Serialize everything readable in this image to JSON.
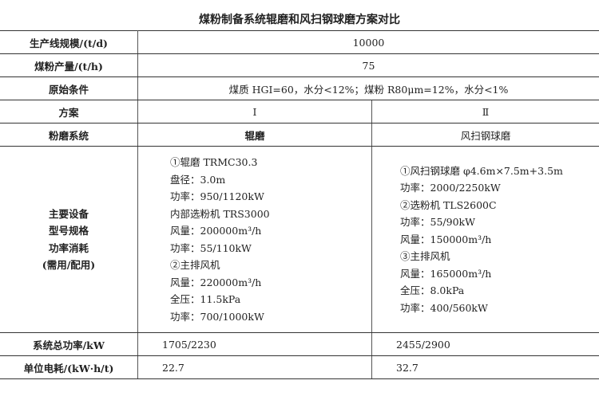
{
  "title": "煤粉制备系统辊磨和风扫钢球磨方案对比",
  "rows": {
    "scale": {
      "label": "生产线规模/(t/d)",
      "value": "10000"
    },
    "output": {
      "label": "煤粉产量/(t/h)",
      "value": "75"
    },
    "conditions": {
      "label": "原始条件",
      "value": "煤质 HGI=60，水分<12%；煤粉 R80μm=12%，水分<1%"
    },
    "scheme": {
      "label": "方案",
      "a": "Ⅰ",
      "b": "Ⅱ"
    },
    "system": {
      "label": "粉磨系统",
      "a": "辊磨",
      "b": "风扫钢球磨"
    },
    "equipment": {
      "label": [
        "主要设备",
        "型号规格",
        "功率消耗",
        "(需用/配用)"
      ],
      "a": [
        "①辊磨 TRMC30.3",
        "盘径：3.0m",
        "功率：950/1120kW",
        "内部选粉机 TRS3000",
        "风量：200000m³/h",
        "功率：55/110kW",
        "②主排风机",
        "风量：220000m³/h",
        "全压：11.5kPa",
        "功率：700/1000kW"
      ],
      "b": [
        "①风扫钢球磨 φ4.6m×7.5m+3.5m",
        "功率：2000/2250kW",
        "②选粉机 TLS2600C",
        "功率：55/90kW",
        "风量：150000m³/h",
        "③主排风机",
        "风量：165000m³/h",
        "全压：8.0kPa",
        "功率：400/560kW"
      ]
    },
    "total_power": {
      "label": "系统总功率/kW",
      "a": "1705/2230",
      "b": "2455/2900"
    },
    "unit_power": {
      "label": "单位电耗/(kW·h/t)",
      "a": "22.7",
      "b": "32.7"
    }
  }
}
